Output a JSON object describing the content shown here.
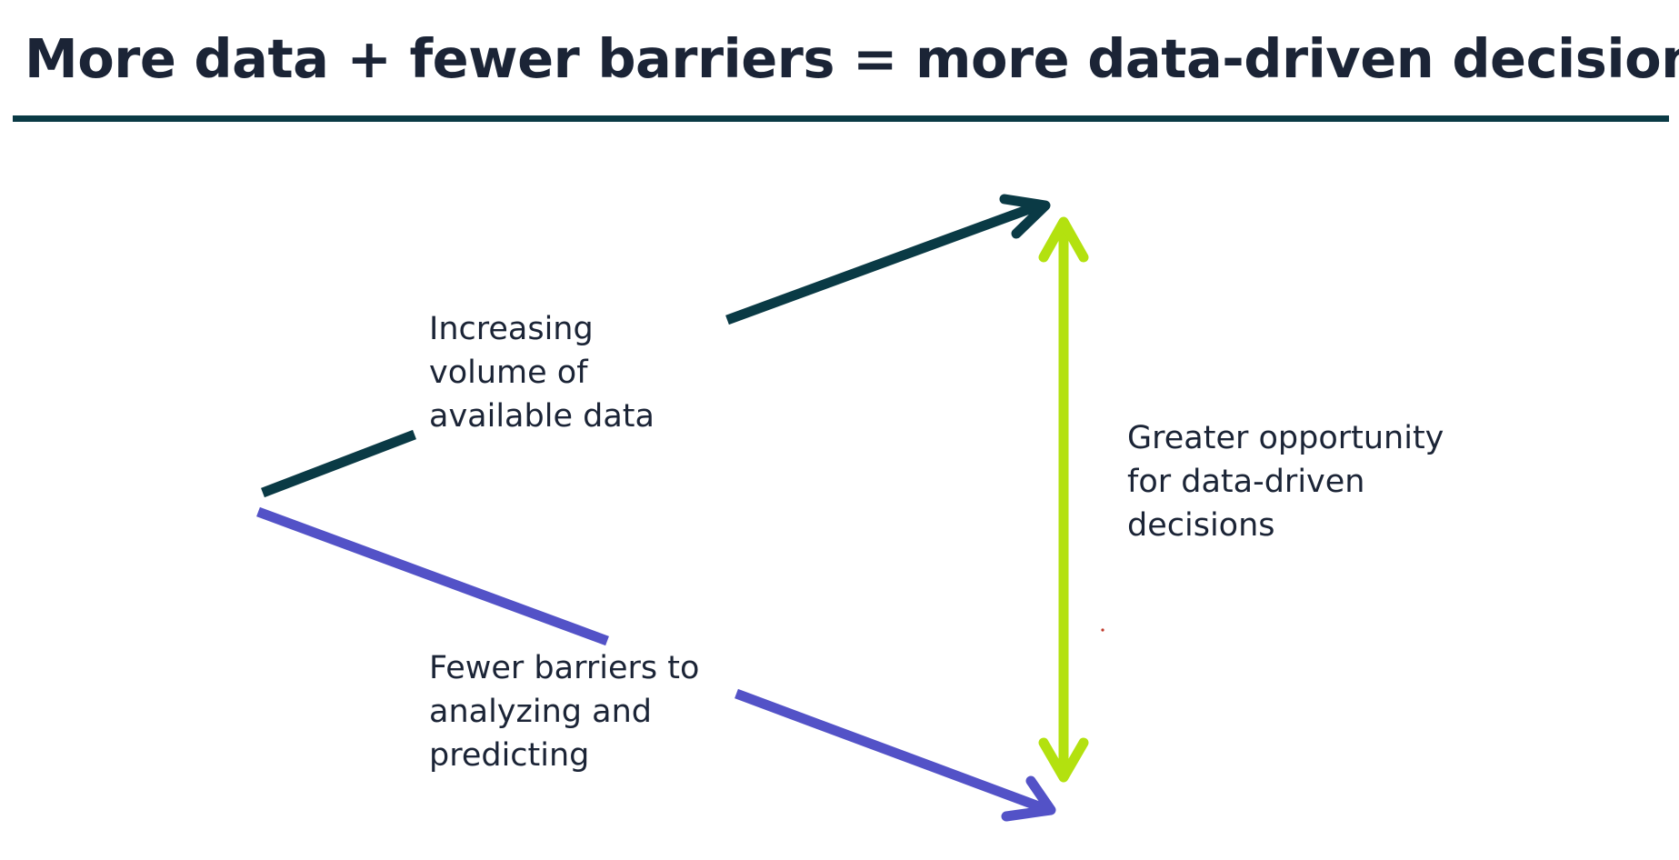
{
  "slide": {
    "title": "More data + fewer barriers = more data-driven decisions"
  },
  "labels": {
    "volume": [
      "Increasing",
      "volume of",
      "available data"
    ],
    "barriers": [
      "Fewer barriers to",
      "analyzing and",
      "predicting"
    ],
    "outcome": [
      "Greater opportunity",
      "for data-driven",
      "decisions"
    ]
  },
  "colors": {
    "text": "#1b2436",
    "rule": "#0a3a45",
    "data_arrow": "#0a3a45",
    "barriers_arrow": "#5352c7",
    "opportunity_arrow": "#b3e10f"
  },
  "icons": {
    "data_arrow": "arrow-up-right-icon",
    "barriers_arrow": "arrow-down-right-icon",
    "opportunity_arrow": "double-headed-vertical-arrow-icon"
  }
}
